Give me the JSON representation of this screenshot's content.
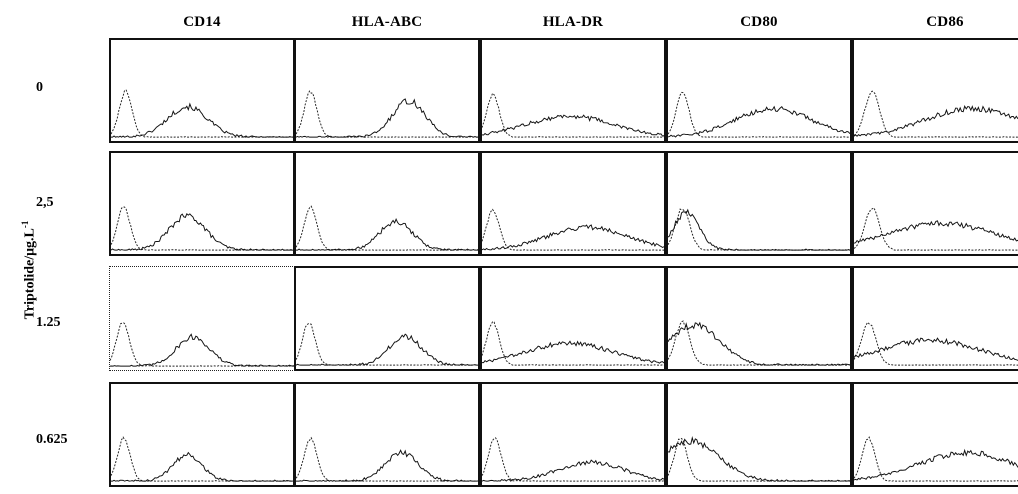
{
  "figure": {
    "y_axis_label": "Triptolide/μg.L",
    "y_axis_label_superscript": "-1"
  },
  "chart_data": {
    "type": "histogram-grid",
    "columns": [
      "CD14",
      "HLA-ABC",
      "HLA-DR",
      "CD80",
      "CD86"
    ],
    "rows": [
      "0",
      "2.5",
      "1.25",
      "0.625"
    ],
    "row_labels_as_printed": [
      "0",
      "2,5",
      "1.25",
      "0.625"
    ],
    "series": [
      {
        "style": "dashed",
        "role": "control"
      },
      {
        "style": "solid",
        "role": "sample"
      }
    ],
    "panels": [
      [
        {
          "solid": {
            "center": 0.42,
            "width": 0.11,
            "height": 0.32
          },
          "dashed": {
            "center": 0.08,
            "width": 0.035,
            "height": 0.48
          }
        },
        {
          "solid": {
            "center": 0.62,
            "width": 0.09,
            "height": 0.38
          },
          "dashed": {
            "center": 0.08,
            "width": 0.035,
            "height": 0.48
          }
        },
        {
          "solid": {
            "center": 0.48,
            "width": 0.24,
            "height": 0.22
          },
          "dashed": {
            "center": 0.06,
            "width": 0.035,
            "height": 0.45
          }
        },
        {
          "solid": {
            "center": 0.58,
            "width": 0.21,
            "height": 0.3
          },
          "dashed": {
            "center": 0.08,
            "width": 0.035,
            "height": 0.48
          }
        },
        {
          "solid": {
            "center": 0.65,
            "width": 0.26,
            "height": 0.3
          },
          "dashed": {
            "center": 0.1,
            "width": 0.04,
            "height": 0.48
          }
        }
      ],
      [
        {
          "solid": {
            "center": 0.42,
            "width": 0.1,
            "height": 0.36
          },
          "dashed": {
            "center": 0.07,
            "width": 0.035,
            "height": 0.45
          }
        },
        {
          "solid": {
            "center": 0.55,
            "width": 0.09,
            "height": 0.3
          },
          "dashed": {
            "center": 0.08,
            "width": 0.035,
            "height": 0.45
          }
        },
        {
          "solid": {
            "center": 0.58,
            "width": 0.22,
            "height": 0.24
          },
          "dashed": {
            "center": 0.06,
            "width": 0.035,
            "height": 0.42
          }
        },
        {
          "solid": {
            "center": 0.1,
            "width": 0.07,
            "height": 0.4
          },
          "dashed": {
            "center": 0.08,
            "width": 0.04,
            "height": 0.44
          }
        },
        {
          "solid": {
            "center": 0.48,
            "width": 0.3,
            "height": 0.28
          },
          "dashed": {
            "center": 0.1,
            "width": 0.04,
            "height": 0.44
          }
        }
      ],
      [
        {
          "solid": {
            "center": 0.45,
            "width": 0.09,
            "height": 0.3
          },
          "dashed": {
            "center": 0.07,
            "width": 0.035,
            "height": 0.45
          }
        },
        {
          "solid": {
            "center": 0.6,
            "width": 0.09,
            "height": 0.3
          },
          "dashed": {
            "center": 0.07,
            "width": 0.035,
            "height": 0.45
          }
        },
        {
          "solid": {
            "center": 0.48,
            "width": 0.24,
            "height": 0.23
          },
          "dashed": {
            "center": 0.06,
            "width": 0.035,
            "height": 0.45
          }
        },
        {
          "solid": {
            "center": 0.14,
            "width": 0.14,
            "height": 0.42
          },
          "dashed": {
            "center": 0.08,
            "width": 0.04,
            "height": 0.45
          }
        },
        {
          "solid": {
            "center": 0.42,
            "width": 0.28,
            "height": 0.26
          },
          "dashed": {
            "center": 0.08,
            "width": 0.04,
            "height": 0.45
          }
        }
      ],
      [
        {
          "solid": {
            "center": 0.42,
            "width": 0.08,
            "height": 0.28
          },
          "dashed": {
            "center": 0.07,
            "width": 0.035,
            "height": 0.45
          }
        },
        {
          "solid": {
            "center": 0.58,
            "width": 0.09,
            "height": 0.3
          },
          "dashed": {
            "center": 0.08,
            "width": 0.035,
            "height": 0.45
          }
        },
        {
          "solid": {
            "center": 0.6,
            "width": 0.18,
            "height": 0.2
          },
          "dashed": {
            "center": 0.07,
            "width": 0.035,
            "height": 0.45
          }
        },
        {
          "solid": {
            "center": 0.12,
            "width": 0.16,
            "height": 0.42
          },
          "dashed": {
            "center": 0.07,
            "width": 0.035,
            "height": 0.45
          }
        },
        {
          "solid": {
            "center": 0.62,
            "width": 0.26,
            "height": 0.3
          },
          "dashed": {
            "center": 0.08,
            "width": 0.035,
            "height": 0.45
          }
        }
      ]
    ]
  }
}
